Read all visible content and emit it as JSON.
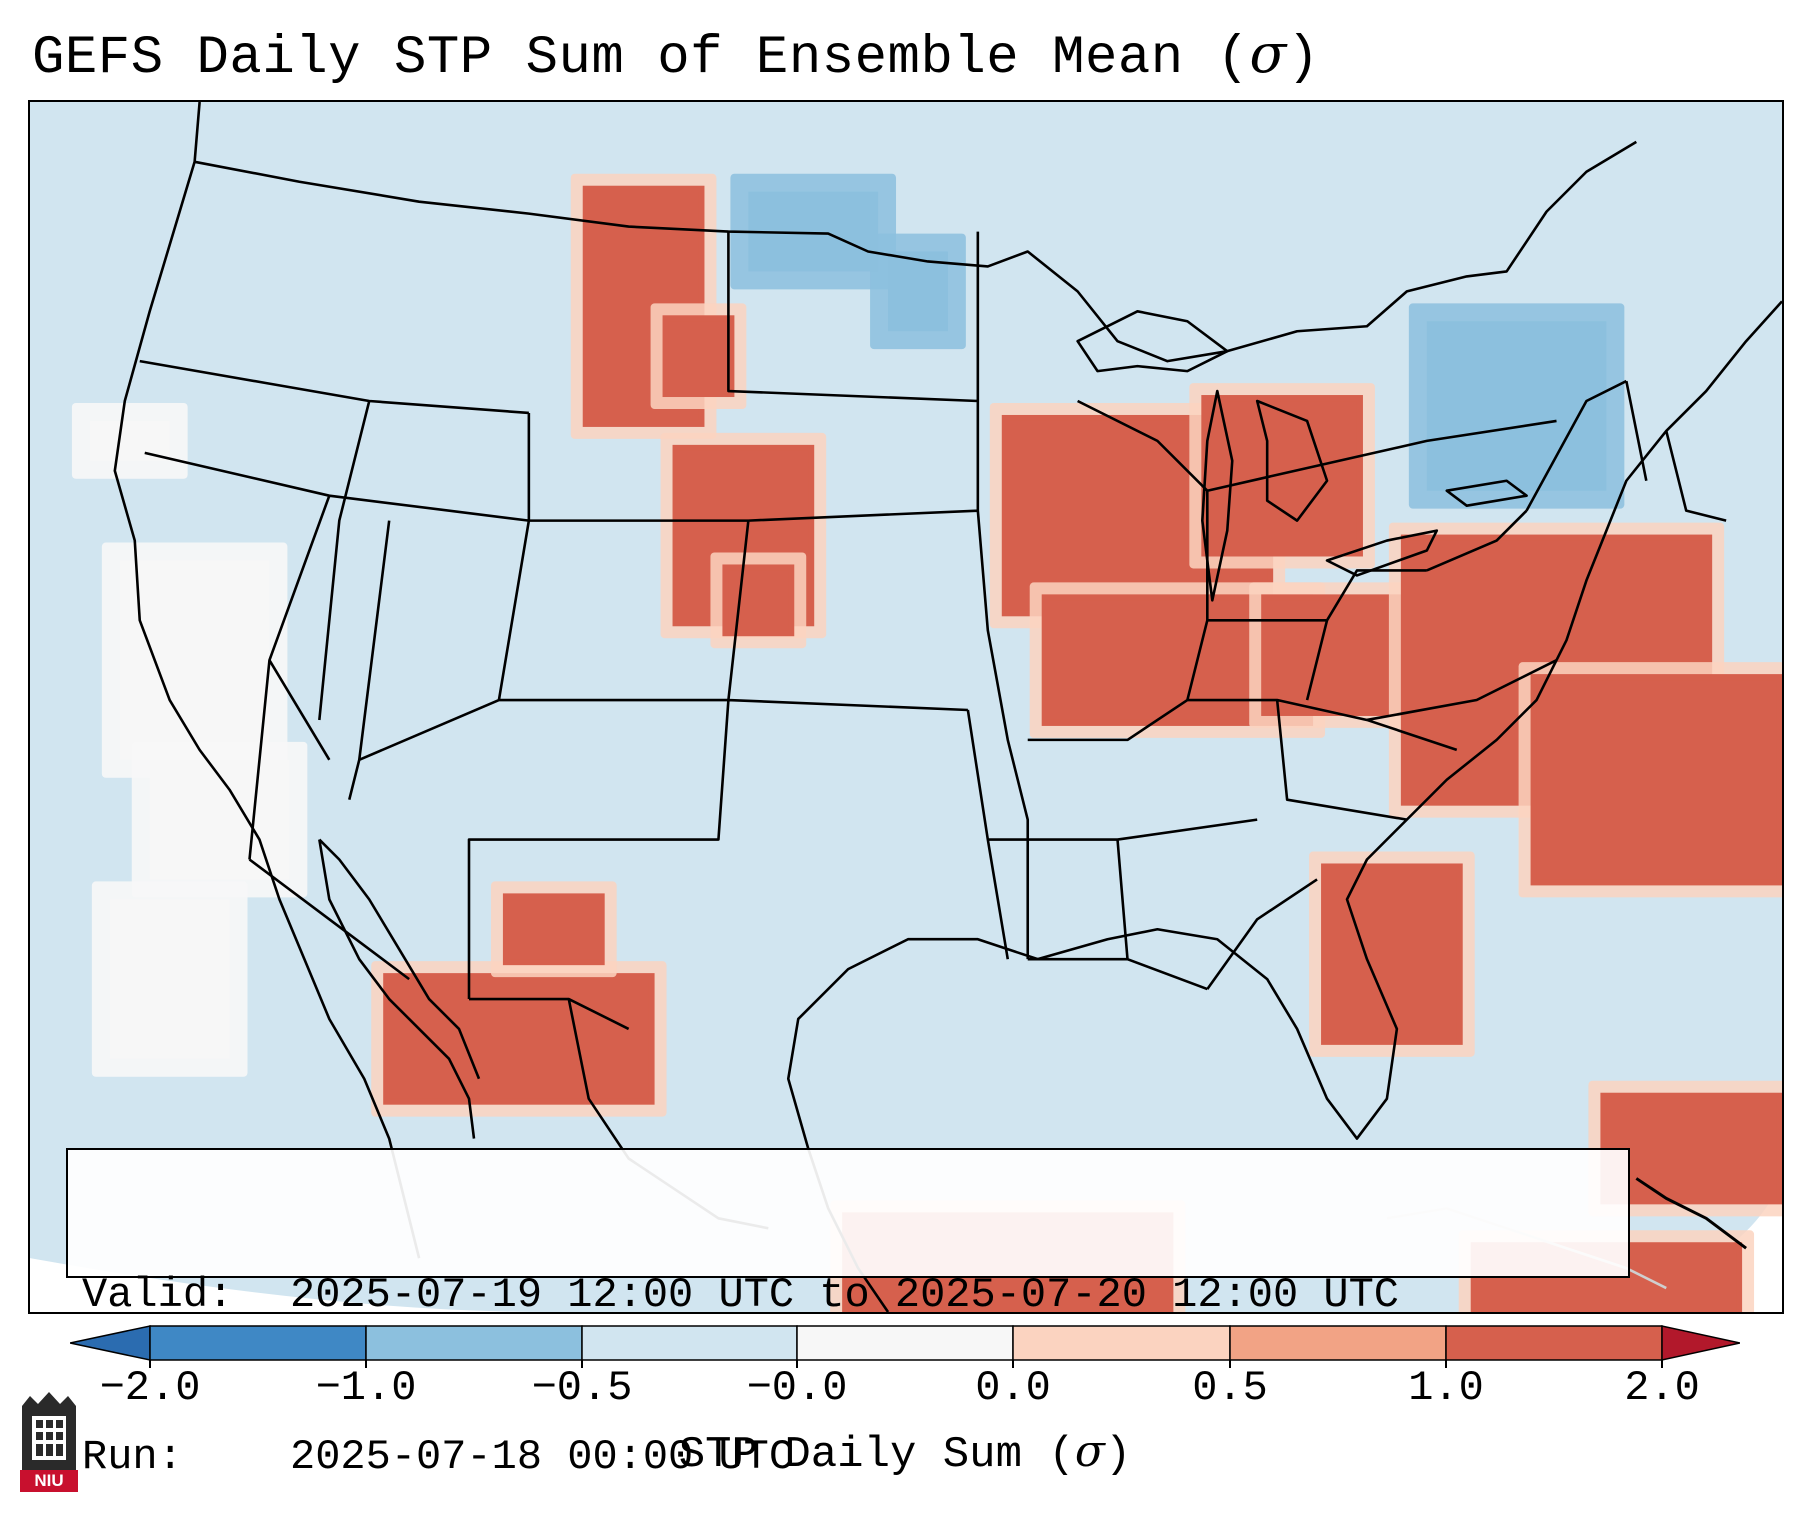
{
  "title": {
    "main": "GEFS Daily STP Sum of Ensemble Mean (",
    "symbol": "σ",
    "close": ")"
  },
  "info_box": {
    "valid_label": "Valid:",
    "valid_value": "2025-07-19 12:00 UTC to 2025-07-20 12:00 UTC",
    "run_label": "Run:",
    "run_value": "2025-07-18 00:00 UTC"
  },
  "colorbar": {
    "ticks": [
      "−2.0",
      "−1.0",
      "−0.5",
      "−0.0",
      "0.0",
      "0.5",
      "1.0",
      "2.0"
    ],
    "label_main": "STP Daily Sum (",
    "label_symbol": "σ",
    "label_close": ")",
    "colors": {
      "under": "#2b6cb0",
      "bin_-2_-1": "#3f88c5",
      "bin_-1_-0.5": "#8cc0de",
      "bin_-0.5_0": "#d1e5f0",
      "bin_0_0": "#f7f7f7",
      "bin_0_0.5": "#fbd3c0",
      "bin_0.5_1": "#f2a385",
      "bin_1_2": "#d6604d",
      "over": "#b2182b"
    }
  },
  "map": {
    "ocean_color": "#d1e5f0",
    "land_color": "#d1e5f0",
    "outline_color": "#000000",
    "regions": {
      "northern_rockies": 1.7,
      "central_high_plains": 1.6,
      "upper_midwest_ohio_valley": 1.6,
      "great_lakes_michigan": 1.4,
      "mid_atlantic_offshore": 1.6,
      "southeast_offshore": 1.8,
      "florida_peninsula": 1.1,
      "bahamas_cuba": 1.5,
      "northern_mexico": 1.2,
      "new_england": -0.7,
      "north_dakota": -0.6,
      "pacific_coast": 0.0
    }
  },
  "logo": {
    "text": "NIU"
  }
}
